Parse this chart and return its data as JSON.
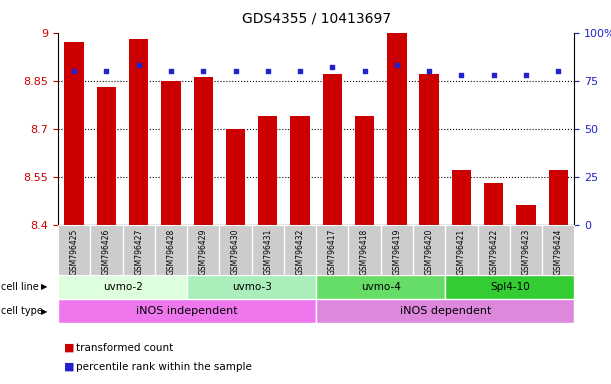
{
  "title": "GDS4355 / 10413697",
  "samples": [
    "GSM796425",
    "GSM796426",
    "GSM796427",
    "GSM796428",
    "GSM796429",
    "GSM796430",
    "GSM796431",
    "GSM796432",
    "GSM796417",
    "GSM796418",
    "GSM796419",
    "GSM796420",
    "GSM796421",
    "GSM796422",
    "GSM796423",
    "GSM796424"
  ],
  "transformed_count": [
    8.97,
    8.83,
    8.98,
    8.85,
    8.86,
    8.7,
    8.74,
    8.74,
    8.87,
    8.74,
    9.0,
    8.87,
    8.57,
    8.53,
    8.46,
    8.57
  ],
  "percentile_rank": [
    80,
    80,
    83,
    80,
    80,
    80,
    80,
    80,
    82,
    80,
    83,
    80,
    78,
    78,
    78,
    80
  ],
  "ylim_left": [
    8.4,
    9.0
  ],
  "ylim_right": [
    0,
    100
  ],
  "yticks_left": [
    8.4,
    8.55,
    8.7,
    8.85,
    9.0
  ],
  "yticks_right": [
    0,
    25,
    50,
    75,
    100
  ],
  "ytick_labels_left": [
    "8.4",
    "8.55",
    "8.7",
    "8.85",
    "9"
  ],
  "ytick_labels_right": [
    "0",
    "25",
    "50",
    "75",
    "100%"
  ],
  "hlines": [
    8.55,
    8.7,
    8.85
  ],
  "bar_color": "#cc0000",
  "dot_color": "#2222cc",
  "cell_lines": [
    {
      "label": "uvmo-2",
      "start": 0,
      "end": 3,
      "color": "#ddffdd"
    },
    {
      "label": "uvmo-3",
      "start": 4,
      "end": 7,
      "color": "#aaeebb"
    },
    {
      "label": "uvmo-4",
      "start": 8,
      "end": 11,
      "color": "#66dd66"
    },
    {
      "label": "Spl4-10",
      "start": 12,
      "end": 15,
      "color": "#33cc33"
    }
  ],
  "cell_types": [
    {
      "label": "iNOS independent",
      "start": 0,
      "end": 7,
      "color": "#ee77ee"
    },
    {
      "label": "iNOS dependent",
      "start": 8,
      "end": 15,
      "color": "#dd88dd"
    }
  ],
  "left_axis_color": "#cc0000",
  "right_axis_color": "#2222cc",
  "sample_box_color": "#cccccc",
  "legend_items": [
    {
      "color": "#cc0000",
      "label": "transformed count"
    },
    {
      "color": "#2222cc",
      "label": "percentile rank within the sample"
    }
  ],
  "bar_width": 0.6
}
